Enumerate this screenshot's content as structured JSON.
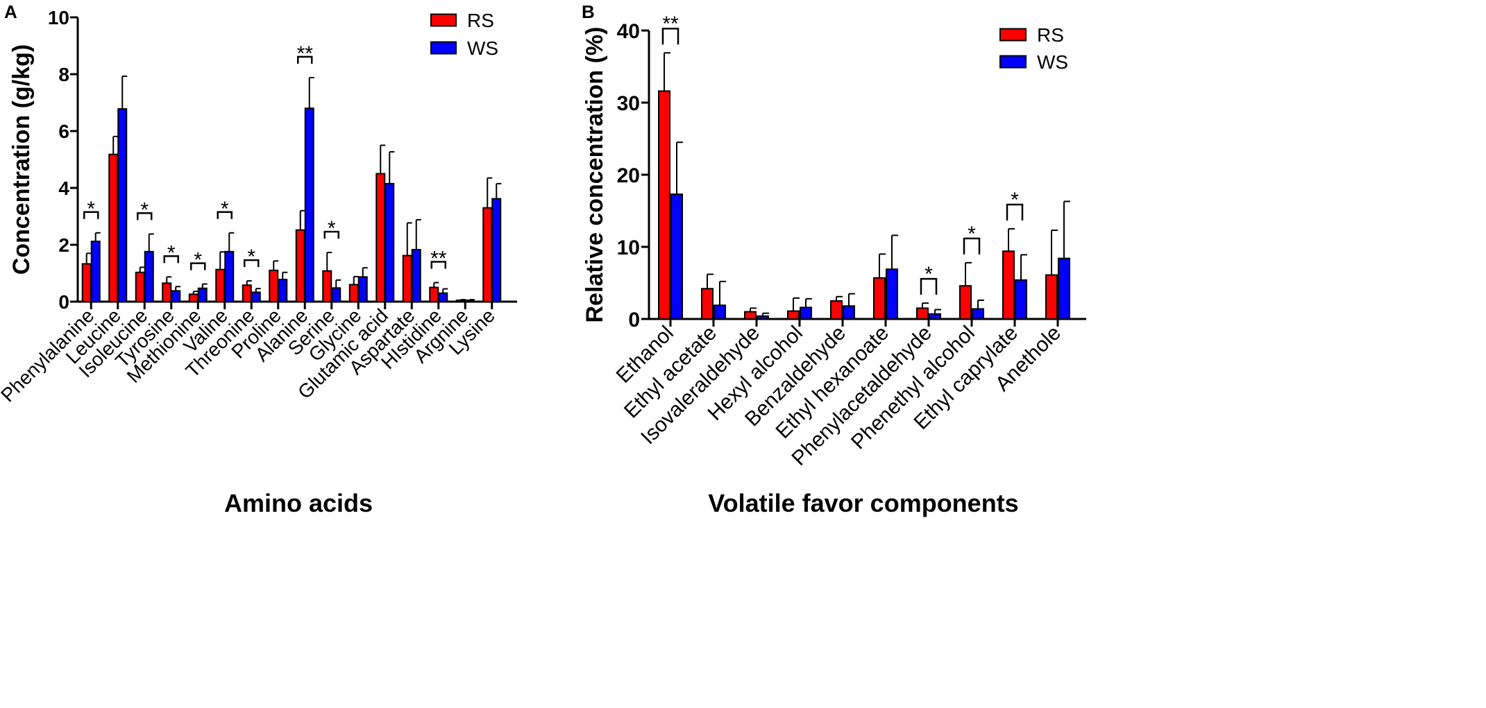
{
  "colors": {
    "rs": "#ff0000",
    "ws": "#0000ff",
    "axis": "#000000"
  },
  "chart_data": [
    {
      "type": "bar",
      "panel_label": "A",
      "title": "",
      "xlabel": "Amino acids",
      "ylabel": "Concentration (g/kg)",
      "ylim": [
        0,
        10
      ],
      "yticks": [
        "0",
        "2",
        "4",
        "6",
        "8",
        "10"
      ],
      "legend_position": "top-right",
      "categories": [
        "Phenylalanine",
        "Leucine",
        "Isoleucine",
        "Tyrosine",
        "Methionine",
        "Valine",
        "Threonine",
        "Proline",
        "Alanine",
        "Serine",
        "Glycine",
        "Glutamic acid",
        "Aspartate",
        "HIstidine",
        "Argnine",
        "Lysine"
      ],
      "series": [
        {
          "name": "RS",
          "color": "#ff0000",
          "values": [
            1.33,
            5.18,
            1.03,
            0.65,
            0.26,
            1.13,
            0.58,
            1.1,
            2.52,
            1.08,
            0.6,
            4.5,
            1.62,
            0.5,
            0.05,
            3.3
          ],
          "errors": [
            0.37,
            0.63,
            0.18,
            0.22,
            0.1,
            0.62,
            0.15,
            0.33,
            0.68,
            0.65,
            0.28,
            1.0,
            1.15,
            0.17,
            0.02,
            1.05
          ]
        },
        {
          "name": "WS",
          "color": "#0000ff",
          "values": [
            2.12,
            6.78,
            1.76,
            0.38,
            0.47,
            1.76,
            0.33,
            0.78,
            6.8,
            0.48,
            0.87,
            4.15,
            1.83,
            0.3,
            0.05,
            3.62
          ],
          "errors": [
            0.3,
            1.15,
            0.62,
            0.15,
            0.15,
            0.66,
            0.13,
            0.25,
            1.08,
            0.28,
            0.32,
            1.12,
            1.05,
            0.15,
            0.02,
            0.53
          ]
        }
      ],
      "significance": [
        {
          "category": "Phenylalanine",
          "label": "*"
        },
        {
          "category": "Isoleucine",
          "label": "*"
        },
        {
          "category": "Tyrosine",
          "label": "*"
        },
        {
          "category": "Methionine",
          "label": "*"
        },
        {
          "category": "Valine",
          "label": "*"
        },
        {
          "category": "Threonine",
          "label": "*"
        },
        {
          "category": "Alanine",
          "label": "**"
        },
        {
          "category": "Serine",
          "label": "*"
        },
        {
          "category": "HIstidine",
          "label": "**"
        }
      ]
    },
    {
      "type": "bar",
      "panel_label": "B",
      "title": "",
      "xlabel": "Volatile favor components",
      "ylabel": "Relative concentration (%)",
      "ylim": [
        0,
        40
      ],
      "yticks": [
        "0",
        "10",
        "20",
        "30",
        "40"
      ],
      "legend_position": "top-right",
      "categories": [
        "Ethanol",
        "Ethyl acetate",
        "Isovaleraldehyde",
        "Hexyl alcohol",
        "Benzaldehyde",
        "Ethyl hexanoate",
        "Phenylacetaldehyde",
        "Phenethyl alcohol",
        "Ethyl caprylate",
        "Anethole"
      ],
      "series": [
        {
          "name": "RS",
          "color": "#ff0000",
          "values": [
            31.6,
            4.2,
            1.0,
            1.1,
            2.5,
            5.7,
            1.5,
            4.6,
            9.4,
            6.1
          ],
          "errors": [
            5.3,
            2.0,
            0.5,
            1.8,
            0.6,
            3.3,
            0.7,
            3.2,
            3.1,
            6.2
          ]
        },
        {
          "name": "WS",
          "color": "#0000ff",
          "values": [
            17.3,
            1.9,
            0.4,
            1.6,
            1.8,
            6.9,
            0.7,
            1.4,
            5.4,
            8.4
          ],
          "errors": [
            7.2,
            3.3,
            0.4,
            1.2,
            1.7,
            4.7,
            0.6,
            1.2,
            3.5,
            7.9
          ]
        }
      ],
      "significance": [
        {
          "category": "Ethanol",
          "label": "**"
        },
        {
          "category": "Phenylacetaldehyde",
          "label": "*"
        },
        {
          "category": "Phenethyl alcohol",
          "label": "*"
        },
        {
          "category": "Ethyl caprylate",
          "label": "*"
        }
      ]
    }
  ]
}
